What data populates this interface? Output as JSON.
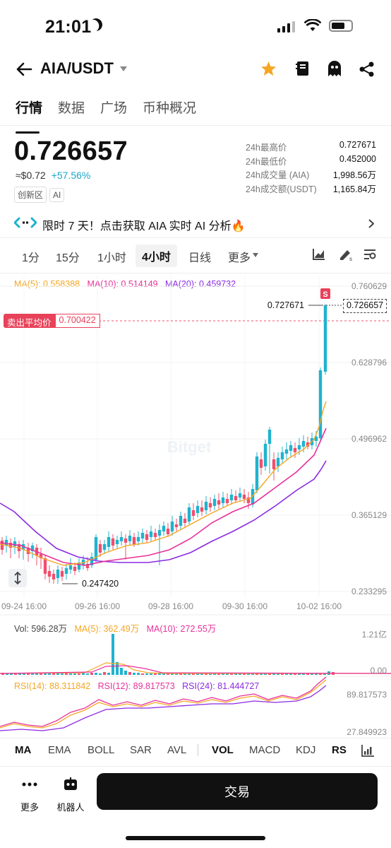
{
  "status_bar": {
    "time": "21:01"
  },
  "header": {
    "pair": "AIA/USDT"
  },
  "tabs": [
    "行情",
    "数据",
    "广场",
    "币种概况"
  ],
  "price": {
    "last": "0.726657",
    "fiat": "≈$0.72",
    "change": "+57.56%",
    "badges": [
      "创新区",
      "AI"
    ]
  },
  "stats": [
    {
      "label": "24h最高价",
      "value": "0.727671"
    },
    {
      "label": "24h最低价",
      "value": "0.452000"
    },
    {
      "label": "24h成交量 (AIA)",
      "value": "1,998.56万"
    },
    {
      "label": "24h成交额(USDT)",
      "value": "1,165.84万"
    }
  ],
  "ai_banner": {
    "text": "限时 7 天！点击获取 AIA 实时 AI 分析"
  },
  "intervals": [
    "1分",
    "15分",
    "1小时",
    "4小时",
    "日线",
    "更多"
  ],
  "active_interval": "4小时",
  "ma_legend": {
    "ma5": "MA(5): 0.558388",
    "ma10": "MA(10): 0.514149",
    "ma20": "MA(20): 0.459732"
  },
  "sell_avg": {
    "label": "卖出平均价",
    "value": "0.700422"
  },
  "chart_labels": {
    "y_ticks": [
      "0.760629",
      "0.628796",
      "0.496962",
      "0.365129",
      "0.233295"
    ],
    "x_ticks": [
      "09-24 16:00",
      "09-26 16:00",
      "09-28 16:00",
      "09-30 16:00",
      "10-02 16:00"
    ],
    "high_mark": "0.727671",
    "low_mark": "0.247420",
    "current_price": "0.726657",
    "watermark": "Bitget",
    "s_marker": "S"
  },
  "volume": {
    "vol": "Vol: 596.28万",
    "ma5": "MA(5): 362.49万",
    "ma10": "MA(10): 272.55万",
    "ticks": [
      "1.21亿",
      "0.00"
    ]
  },
  "rsi": {
    "rsi14": "RSI(14): 88.311842",
    "rsi12": "RSI(12): 89.817573",
    "rsi24": "RSI(24): 81.444727",
    "ticks": [
      "89.817573",
      "27.849923"
    ]
  },
  "indicators": [
    "MA",
    "EMA",
    "BOLL",
    "SAR",
    "AVL",
    "VOL",
    "MACD",
    "KDJ",
    "RS"
  ],
  "bottom": {
    "more": "更多",
    "bot": "机器人",
    "trade": "交易"
  },
  "colors": {
    "up": "#1fb3cf",
    "down": "#f0506e",
    "ma5": "#f5a623",
    "ma10": "#e8309a",
    "ma20": "#8b2be2"
  }
}
